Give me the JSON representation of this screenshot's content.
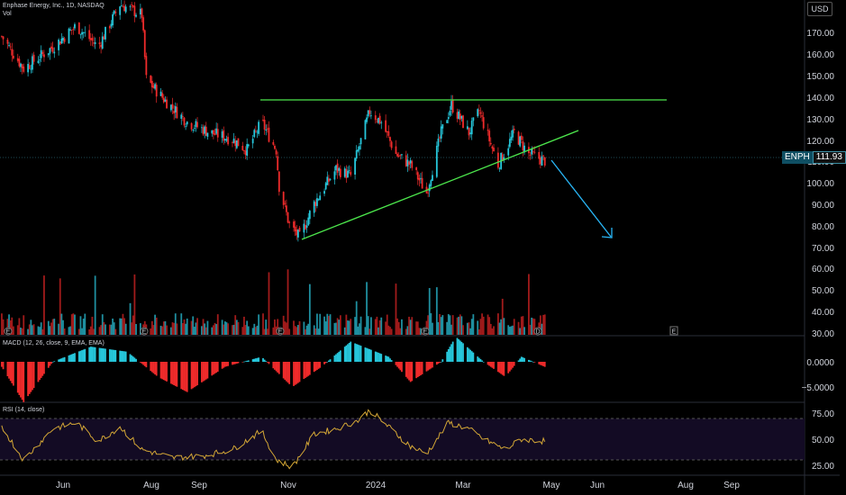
{
  "header": {
    "title": "Enphase Energy, Inc., 1D, NASDAQ",
    "vol_label": "Vol",
    "currency": "USD"
  },
  "price_badge": {
    "symbol": "ENPH",
    "value": "111.93"
  },
  "price_axis": {
    "ticks": [
      "170.00",
      "160.00",
      "150.00",
      "140.00",
      "130.00",
      "120.00",
      "110.00",
      "100.00",
      "90.00",
      "80.00",
      "70.00",
      "60.00",
      "50.00",
      "40.00",
      "30.00"
    ]
  },
  "macd_axis": {
    "ticks": [
      "0.0000",
      "−5.0000"
    ]
  },
  "rsi_axis": {
    "ticks": [
      "75.00",
      "50.00",
      "25.00"
    ]
  },
  "time_axis": {
    "ticks": [
      "Jun",
      "Aug",
      "Sep",
      "Nov",
      "2024",
      "Mar",
      "May",
      "Jun",
      "Aug",
      "Sep"
    ]
  },
  "indicators": {
    "macd_label": "MACD (12, 26, close, 9, EMA, EMA)",
    "rsi_label": "RSI (14, close)"
  },
  "event_markers": [
    "E",
    "E",
    "E",
    "E",
    "D",
    "E"
  ],
  "colors": {
    "background": "#000000",
    "up_candle": "#26c6da",
    "down_candle": "#ef2b2b",
    "resistance_line": "#4ce64c",
    "trend_line": "#4ce64c",
    "arrow": "#29b6f6",
    "rsi_line": "#d4a736",
    "price_line": "#3c8ea3"
  },
  "chart_data": {
    "type": "candlestick",
    "symbol": "ENPH",
    "interval": "1D",
    "exchange": "NASDAQ",
    "last_price": 111.93,
    "ylim": [
      30,
      180
    ],
    "resistance_level": 139,
    "uptrend_line": {
      "from": {
        "date": "2023-11-06",
        "price": 73
      },
      "to": {
        "date": "2024-05-08",
        "price": 125
      }
    },
    "projection_arrow": {
      "from": {
        "date": "2024-04-26",
        "price": 112
      },
      "to": {
        "date": "2024-06-03",
        "price": 75
      }
    },
    "close_path_keypoints": [
      {
        "date": "2023-04-20",
        "close": 170
      },
      {
        "date": "2023-05-05",
        "close": 155
      },
      {
        "date": "2023-05-25",
        "close": 165
      },
      {
        "date": "2023-06-10",
        "close": 175
      },
      {
        "date": "2023-06-25",
        "close": 165
      },
      {
        "date": "2023-07-10",
        "close": 185
      },
      {
        "date": "2023-07-25",
        "close": 180
      },
      {
        "date": "2023-07-28",
        "close": 150
      },
      {
        "date": "2023-08-10",
        "close": 140
      },
      {
        "date": "2023-08-25",
        "close": 130
      },
      {
        "date": "2023-09-10",
        "close": 125
      },
      {
        "date": "2023-09-25",
        "close": 122
      },
      {
        "date": "2023-10-05",
        "close": 117
      },
      {
        "date": "2023-10-15",
        "close": 130
      },
      {
        "date": "2023-10-25",
        "close": 117
      },
      {
        "date": "2023-10-27",
        "close": 100
      },
      {
        "date": "2023-11-03",
        "close": 82
      },
      {
        "date": "2023-11-10",
        "close": 76
      },
      {
        "date": "2023-11-20",
        "close": 92
      },
      {
        "date": "2023-12-05",
        "close": 108
      },
      {
        "date": "2023-12-15",
        "close": 105
      },
      {
        "date": "2023-12-28",
        "close": 135
      },
      {
        "date": "2024-01-05",
        "close": 130
      },
      {
        "date": "2024-01-15",
        "close": 115
      },
      {
        "date": "2024-01-25",
        "close": 110
      },
      {
        "date": "2024-02-05",
        "close": 97
      },
      {
        "date": "2024-02-15",
        "close": 125
      },
      {
        "date": "2024-02-22",
        "close": 138
      },
      {
        "date": "2024-03-05",
        "close": 125
      },
      {
        "date": "2024-03-12",
        "close": 135
      },
      {
        "date": "2024-03-25",
        "close": 110
      },
      {
        "date": "2024-04-05",
        "close": 125
      },
      {
        "date": "2024-04-15",
        "close": 115
      },
      {
        "date": "2024-04-26",
        "close": 112
      }
    ],
    "macd_keypoints": [
      {
        "date": "2023-04-20",
        "value": -1
      },
      {
        "date": "2023-05-05",
        "value": -8
      },
      {
        "date": "2023-05-25",
        "value": 0
      },
      {
        "date": "2023-06-20",
        "value": 3
      },
      {
        "date": "2023-07-15",
        "value": 2
      },
      {
        "date": "2023-08-05",
        "value": -3
      },
      {
        "date": "2023-08-25",
        "value": -6
      },
      {
        "date": "2023-09-20",
        "value": -1
      },
      {
        "date": "2023-10-15",
        "value": 1
      },
      {
        "date": "2023-11-05",
        "value": -5
      },
      {
        "date": "2023-11-25",
        "value": -1
      },
      {
        "date": "2023-12-15",
        "value": 4
      },
      {
        "date": "2024-01-10",
        "value": 1
      },
      {
        "date": "2024-01-25",
        "value": -4
      },
      {
        "date": "2024-02-15",
        "value": 0
      },
      {
        "date": "2024-02-25",
        "value": 5
      },
      {
        "date": "2024-03-15",
        "value": 0
      },
      {
        "date": "2024-03-30",
        "value": -3
      },
      {
        "date": "2024-04-10",
        "value": 1
      },
      {
        "date": "2024-04-26",
        "value": -1
      }
    ],
    "rsi_keypoints": [
      {
        "date": "2023-04-20",
        "value": 62
      },
      {
        "date": "2023-05-05",
        "value": 30
      },
      {
        "date": "2023-05-25",
        "value": 60
      },
      {
        "date": "2023-06-10",
        "value": 66
      },
      {
        "date": "2023-06-25",
        "value": 48
      },
      {
        "date": "2023-07-10",
        "value": 62
      },
      {
        "date": "2023-07-25",
        "value": 40
      },
      {
        "date": "2023-08-15",
        "value": 32
      },
      {
        "date": "2023-09-05",
        "value": 34
      },
      {
        "date": "2023-09-25",
        "value": 40
      },
      {
        "date": "2023-10-15",
        "value": 58
      },
      {
        "date": "2023-10-25",
        "value": 30
      },
      {
        "date": "2023-11-05",
        "value": 23
      },
      {
        "date": "2023-11-20",
        "value": 55
      },
      {
        "date": "2023-12-05",
        "value": 60
      },
      {
        "date": "2023-12-20",
        "value": 68
      },
      {
        "date": "2023-12-28",
        "value": 78
      },
      {
        "date": "2024-01-10",
        "value": 62
      },
      {
        "date": "2024-01-25",
        "value": 43
      },
      {
        "date": "2024-02-05",
        "value": 36
      },
      {
        "date": "2024-02-20",
        "value": 66
      },
      {
        "date": "2024-03-05",
        "value": 60
      },
      {
        "date": "2024-03-15",
        "value": 50
      },
      {
        "date": "2024-03-30",
        "value": 40
      },
      {
        "date": "2024-04-10",
        "value": 50
      },
      {
        "date": "2024-04-26",
        "value": 48
      }
    ],
    "rsi_bands": [
      70,
      30
    ]
  }
}
